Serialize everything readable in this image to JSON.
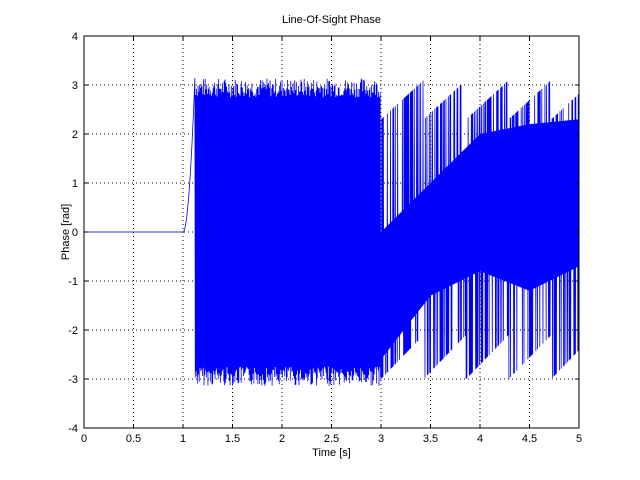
{
  "chart_data": {
    "type": "line",
    "title": "Line-Of-Sight Phase",
    "xlabel": "Time [s]",
    "ylabel": "Phase [rad]",
    "xlim": [
      0,
      5
    ],
    "ylim": [
      -4,
      4
    ],
    "xticks": [
      0,
      0.5,
      1,
      1.5,
      2,
      2.5,
      3,
      3.5,
      4,
      4.5,
      5
    ],
    "xtick_labels": [
      "0",
      "0.5",
      "1",
      "1.5",
      "2",
      "2.5",
      "3",
      "3.5",
      "4",
      "4.5",
      "5"
    ],
    "yticks": [
      -4,
      -3,
      -2,
      -1,
      0,
      1,
      2,
      3,
      4
    ],
    "ytick_labels": [
      "-4",
      "-3",
      "-2",
      "-1",
      "0",
      "1",
      "2",
      "3",
      "4"
    ],
    "grid": true,
    "grid_style": "dotted",
    "line_color": "#0000ff",
    "series": [
      {
        "description_values": {
          "flat_segment": {
            "x": [
              0,
              1.0
            ],
            "y": 0
          },
          "rise": {
            "x": [
              1.0,
              1.12
            ],
            "y": [
              0,
              3.14
            ]
          },
          "dense_oscillation": {
            "x": [
              1.12,
              3.0
            ],
            "y_range": [
              -3.14,
              3.14
            ]
          },
          "wrapped_ramps": {
            "x_range": [
              3.0,
              5.0
            ],
            "y_range": [
              -3.14,
              3.14
            ],
            "upper_envelope_ramp": [
              {
                "x": 3.0,
                "y": 0.0
              },
              {
                "x": 3.5,
                "y": 1.0
              },
              {
                "x": 4.0,
                "y": 2.0
              },
              {
                "x": 4.5,
                "y": 2.2
              },
              {
                "x": 5.0,
                "y": 2.3
              }
            ],
            "lower_envelope_ramp": [
              {
                "x": 3.0,
                "y": -2.6
              },
              {
                "x": 3.5,
                "y": -1.3
              },
              {
                "x": 4.0,
                "y": -0.8
              },
              {
                "x": 4.5,
                "y": -1.2
              },
              {
                "x": 5.0,
                "y": -0.7
              }
            ]
          }
        }
      }
    ]
  }
}
